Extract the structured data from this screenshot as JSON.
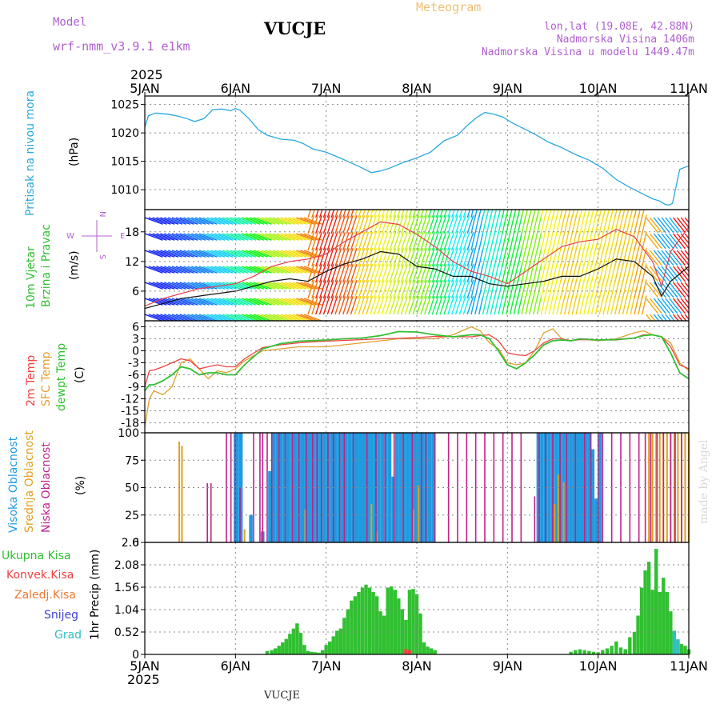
{
  "header": {
    "model_label": "Model",
    "model_name": "wrf-nmm_v3.9.1  e1km",
    "station": "VUCJE",
    "chart_title": "Meteogram",
    "lonlat": "lon,lat (19.08E, 42.88N)",
    "altitude": "Nadmorska Visina 1406m",
    "model_altitude": "Nadmorska Visina u modelu 1449.47m",
    "credit": "made by Angel",
    "footer_station": "VUCJE"
  },
  "colors": {
    "pressure": "#29a8e0",
    "wind_speed": "#111111",
    "gust": "#e8404a",
    "temp_2m": "#f04040",
    "temp_sfc": "#e0a030",
    "dewpoint": "#30c030",
    "cloud_high": "#1e9be0",
    "cloud_mid": "#e0a020",
    "cloud_low": "#c0208a",
    "precip_total": "#30c030",
    "precip_conv": "#f04040",
    "precip_frozen": "#f07830",
    "snow": "#4040d0",
    "hail": "#30c0c0"
  },
  "axes": {
    "year": "2025",
    "dates": [
      "5JAN",
      "6JAN",
      "7JAN",
      "8JAN",
      "9JAN",
      "10JAN",
      "11JAN"
    ]
  },
  "chart_data": [
    {
      "type": "line",
      "ylabel_main": "Pritisak na nivou mora",
      "unit": "(hPa)",
      "yticks": [
        "1010",
        "1015",
        "1020",
        "1025"
      ],
      "ylim": [
        1006.5,
        1026.5
      ],
      "x_days": [
        0,
        0.04,
        0.12,
        0.25,
        0.35,
        0.45,
        0.55,
        0.65,
        0.75,
        0.85,
        0.95,
        1.0,
        1.05,
        1.15,
        1.25,
        1.35,
        1.5,
        1.65,
        1.75,
        1.85,
        2.0,
        2.15,
        2.35,
        2.5,
        2.6,
        2.7,
        2.85,
        3.0,
        3.15,
        3.3,
        3.45,
        3.55,
        3.65,
        3.75,
        3.85,
        3.95,
        4.05,
        4.15,
        4.3,
        4.45,
        4.6,
        4.75,
        4.9,
        5.05,
        5.2,
        5.35,
        5.5,
        5.6,
        5.68,
        5.74,
        5.78,
        5.82,
        5.9,
        6.0
      ],
      "series": [
        {
          "name": "Pritisak na nivou mora",
          "values": [
            1021,
            1023,
            1023.5,
            1023.3,
            1023,
            1022.6,
            1022.0,
            1022.5,
            1024.1,
            1024.2,
            1023.9,
            1024.3,
            1024.0,
            1022.5,
            1020.6,
            1019.6,
            1018.9,
            1018.7,
            1018.1,
            1017.2,
            1016.6,
            1015.6,
            1014.2,
            1013.0,
            1013.3,
            1013.8,
            1014.8,
            1015.6,
            1016.6,
            1018.6,
            1019.6,
            1021.2,
            1022.6,
            1023.6,
            1023.3,
            1022.8,
            1021.8,
            1021.0,
            1019.8,
            1018.4,
            1017.4,
            1016.2,
            1015.2,
            1013.8,
            1011.8,
            1010.4,
            1009.2,
            1008.4,
            1008.0,
            1007.4,
            1007.3,
            1007.6,
            1013.6,
            1014.2
          ]
        }
      ]
    },
    {
      "type": "line",
      "ylabel_main": "10m Vjetar",
      "ylabel_sub": "Brzina i Pravac",
      "unit": "(m/s)",
      "compass": {
        "north": "N",
        "south": "S",
        "east": "E",
        "west": "W"
      },
      "yticks": [
        "6",
        "12",
        "18"
      ],
      "ylim": [
        0,
        22.5
      ],
      "x_days": [
        0,
        0.2,
        0.4,
        0.6,
        0.8,
        1.0,
        1.2,
        1.4,
        1.6,
        1.8,
        2.0,
        2.2,
        2.4,
        2.6,
        2.8,
        3.0,
        3.2,
        3.4,
        3.6,
        3.8,
        4.0,
        4.2,
        4.4,
        4.6,
        4.8,
        5.0,
        5.2,
        5.4,
        5.6,
        5.7,
        5.8,
        6.0
      ],
      "series": [
        {
          "name": "wind speed",
          "values": [
            2.5,
            3.5,
            4.5,
            5.0,
            5.5,
            6.0,
            7.0,
            8.0,
            8.5,
            8.0,
            10.0,
            11.5,
            12.5,
            14.0,
            13.5,
            11.0,
            10.5,
            9.0,
            9.0,
            7.5,
            7.0,
            7.5,
            8.0,
            9.0,
            9.0,
            10.5,
            12.5,
            12.0,
            9.0,
            5.0,
            8.0,
            11.0
          ]
        },
        {
          "name": "gust",
          "values": [
            3.0,
            4.5,
            5.5,
            6.5,
            7.0,
            7.5,
            9.0,
            11.0,
            12.0,
            12.5,
            13.5,
            16.0,
            18.0,
            20.0,
            19.5,
            17.5,
            15.0,
            12.0,
            10.0,
            9.0,
            7.5,
            10.0,
            12.5,
            15.0,
            16.0,
            16.5,
            18.5,
            17.0,
            12.0,
            7.0,
            14.0,
            19.0
          ]
        }
      ],
      "barb_hue_range": [
        "blue",
        "cyan",
        "green",
        "yellow",
        "red",
        "yellow",
        "green",
        "cyan",
        "red"
      ]
    },
    {
      "type": "line",
      "ylabel_t2m": "2m Temp",
      "ylabel_sfc": "SFC Temp",
      "ylabel_dew": "dewpt Temp",
      "unit": "(C)",
      "yticks": [
        "6",
        "3",
        "0",
        "-3",
        "-6",
        "-9",
        "-12",
        "-15",
        "-18"
      ],
      "ylim": [
        -20.5,
        7.5
      ],
      "x_days": [
        0,
        0.05,
        0.1,
        0.2,
        0.3,
        0.4,
        0.5,
        0.6,
        0.7,
        0.8,
        0.9,
        1.0,
        1.1,
        1.3,
        1.5,
        1.7,
        1.9,
        2.0,
        2.2,
        2.4,
        2.6,
        2.8,
        3.0,
        3.2,
        3.4,
        3.6,
        3.7,
        3.8,
        3.9,
        4.0,
        4.1,
        4.2,
        4.3,
        4.4,
        4.5,
        4.6,
        4.7,
        4.8,
        5.0,
        5.2,
        5.4,
        5.5,
        5.6,
        5.7,
        5.8,
        5.9,
        6.0
      ],
      "series": [
        {
          "name": "2m Temp",
          "values": [
            -9,
            -5,
            -4.8,
            -4.0,
            -3.0,
            -2.0,
            -2.5,
            -4.5,
            -4.0,
            -3.5,
            -4.0,
            -4.0,
            -2.0,
            0.8,
            1.5,
            2.0,
            2.3,
            2.4,
            2.6,
            2.8,
            3.0,
            3.1,
            3.3,
            3.6,
            3.5,
            3.5,
            3.8,
            4.0,
            2.5,
            -0.5,
            -1.0,
            -1.2,
            0.0,
            2.0,
            3.0,
            3.0,
            2.5,
            2.8,
            2.7,
            2.7,
            3.2,
            4.0,
            4.0,
            3.5,
            1.0,
            -3.5,
            -4.5
          ]
        },
        {
          "name": "SFC Temp",
          "values": [
            -19,
            -12,
            -10,
            -11,
            -9,
            -3.0,
            -2.0,
            -4.5,
            -7.0,
            -5.0,
            -5.5,
            -4.5,
            -2.5,
            0.0,
            0.5,
            1.0,
            1.0,
            1.0,
            1.5,
            2.0,
            2.5,
            3.0,
            3.0,
            3.0,
            4.0,
            6.0,
            5.0,
            2.0,
            0.5,
            -3.0,
            -3.5,
            -3.0,
            0.0,
            4.5,
            5.5,
            3.0,
            2.5,
            3.0,
            2.5,
            3.0,
            4.5,
            5.0,
            4.0,
            3.5,
            2.0,
            -3.0,
            -5.0
          ]
        },
        {
          "name": "dewpt Temp",
          "values": [
            -10,
            -8.5,
            -8.5,
            -7.5,
            -6.0,
            -4.0,
            -4.5,
            -6.0,
            -5.5,
            -5.5,
            -6.0,
            -6.0,
            -3.5,
            0.5,
            1.8,
            2.4,
            2.6,
            2.7,
            3.0,
            3.2,
            3.8,
            4.8,
            4.7,
            4.0,
            3.5,
            4.0,
            4.0,
            3.0,
            0.0,
            -3.5,
            -4.5,
            -3.0,
            -1.0,
            1.5,
            2.5,
            2.7,
            2.5,
            3.0,
            2.7,
            2.8,
            3.2,
            3.8,
            4.0,
            3.5,
            -0.5,
            -5.5,
            -7.0
          ]
        }
      ]
    },
    {
      "type": "bar",
      "ylabel_high": "Visoka Oblacnost",
      "ylabel_mid": "Srednja Oblacnost",
      "ylabel_low": "Niska Oblacnost",
      "unit": "(%)",
      "yticks": [
        "0",
        "25",
        "50",
        "75",
        "100"
      ],
      "ylim": [
        0,
        100
      ],
      "series": [
        {
          "name": "Visoka Oblacnost",
          "x_days": [
            1.0,
            1.02,
            1.06,
            1.17,
            1.3,
            1.38,
            1.42,
            1.46,
            1.5,
            1.54,
            1.58,
            1.62,
            1.66,
            1.7,
            1.74,
            1.78,
            1.82,
            1.86,
            1.9,
            1.94,
            1.98,
            2.02,
            2.06,
            2.1,
            2.14,
            2.18,
            2.22,
            2.26,
            2.3,
            2.34,
            2.38,
            2.42,
            2.46,
            2.5,
            2.54,
            2.58,
            2.62,
            2.66,
            2.7,
            2.74,
            2.78,
            2.82,
            2.86,
            2.9,
            2.94,
            2.98,
            3.02,
            3.06,
            3.1,
            3.14,
            3.18,
            4.34,
            4.38,
            4.42,
            4.46,
            4.5,
            4.54,
            4.58,
            4.62,
            4.66,
            4.7,
            4.74,
            4.78,
            4.82,
            4.86,
            4.9,
            4.94,
            4.98,
            5.02
          ],
          "values": [
            100,
            100,
            100,
            25,
            10,
            65,
            100,
            100,
            100,
            100,
            100,
            100,
            100,
            100,
            100,
            100,
            100,
            100,
            100,
            100,
            100,
            100,
            100,
            100,
            100,
            100,
            100,
            100,
            100,
            100,
            100,
            100,
            100,
            100,
            100,
            100,
            100,
            100,
            100,
            60,
            100,
            100,
            100,
            100,
            100,
            100,
            100,
            100,
            100,
            100,
            100,
            100,
            100,
            100,
            100,
            100,
            100,
            100,
            100,
            100,
            100,
            100,
            100,
            100,
            100,
            100,
            85,
            40,
            100
          ]
        },
        {
          "name": "Srednja Oblacnost",
          "x_days": [
            0.38,
            0.41,
            1.1,
            1.77,
            2.5,
            2.56,
            2.96,
            3.02,
            4.52,
            4.56,
            4.62,
            5.56,
            5.6,
            5.64,
            5.68,
            5.72,
            5.76,
            5.8,
            5.84,
            5.88,
            5.92,
            5.96,
            6.0
          ],
          "values": [
            92,
            88,
            12,
            30,
            35,
            10,
            30,
            52,
            35,
            62,
            55,
            100,
            100,
            100,
            100,
            100,
            100,
            100,
            100,
            100,
            100,
            100,
            100
          ]
        },
        {
          "name": "Niska Oblacnost",
          "x_days": [
            0.69,
            0.73,
            0.75,
            0.9,
            0.95,
            1.0,
            1.05,
            1.2,
            1.27,
            1.3,
            1.35,
            1.4,
            1.48,
            1.55,
            1.63,
            1.7,
            1.78,
            1.85,
            1.9,
            1.95,
            2.02,
            2.08,
            2.15,
            2.2,
            2.3,
            2.45,
            2.55,
            2.65,
            2.75,
            2.85,
            2.95,
            3.05,
            3.1,
            3.2,
            3.35,
            3.45,
            3.55,
            3.65,
            3.75,
            3.85,
            3.95,
            4.05,
            4.15,
            4.3,
            4.35,
            4.42,
            4.5,
            4.58,
            4.65,
            4.75,
            4.85,
            4.92,
            5.0,
            5.05,
            5.15,
            5.25,
            5.35,
            5.45,
            5.52,
            5.58,
            5.65,
            5.72,
            5.8,
            5.85,
            5.92
          ],
          "values": [
            54,
            54,
            0,
            100,
            100,
            100,
            50,
            100,
            100,
            100,
            100,
            100,
            100,
            100,
            100,
            100,
            100,
            100,
            100,
            100,
            100,
            100,
            100,
            100,
            100,
            100,
            100,
            100,
            100,
            100,
            100,
            100,
            100,
            100,
            100,
            100,
            100,
            100,
            100,
            100,
            100,
            100,
            100,
            42,
            100,
            100,
            100,
            100,
            100,
            100,
            100,
            100,
            100,
            100,
            100,
            100,
            100,
            100,
            100,
            100,
            100,
            100,
            100,
            100,
            100
          ]
        }
      ]
    },
    {
      "type": "bar",
      "legend": [
        "Ukupna Kisa",
        "Konvek.Kisa",
        "Zaledj.Kisa",
        "Snijeg",
        "Grad"
      ],
      "unit": "1hr Precip (mm)",
      "yticks": [
        "0",
        "0.52",
        "1.04",
        "1.56",
        "2.08",
        "2.6"
      ],
      "ylim": [
        0,
        2.6
      ],
      "series": [
        {
          "name": "Ukupna Kisa",
          "x_days": [
            1.35,
            1.4,
            1.44,
            1.48,
            1.52,
            1.56,
            1.6,
            1.64,
            1.68,
            1.72,
            1.76,
            1.8,
            1.84,
            1.88,
            1.92,
            1.96,
            2.0,
            2.04,
            2.08,
            2.12,
            2.16,
            2.2,
            2.24,
            2.28,
            2.32,
            2.36,
            2.4,
            2.44,
            2.48,
            2.52,
            2.56,
            2.6,
            2.64,
            2.68,
            2.72,
            2.76,
            2.8,
            2.84,
            2.88,
            2.92,
            2.96,
            3.0,
            3.04,
            3.08,
            3.12,
            3.16,
            3.2,
            4.7,
            4.75,
            4.8,
            4.85,
            4.9,
            4.95,
            5.0,
            5.05,
            5.1,
            5.15,
            5.2,
            5.25,
            5.3,
            5.35,
            5.4,
            5.44,
            5.48,
            5.52,
            5.56,
            5.6,
            5.64,
            5.68,
            5.72,
            5.76,
            5.8,
            5.84,
            5.88,
            5.92,
            5.96,
            6.0
          ],
          "values": [
            0.08,
            0.1,
            0.14,
            0.2,
            0.28,
            0.36,
            0.48,
            0.6,
            0.72,
            0.5,
            0.22,
            0.08,
            0.06,
            0.05,
            0.04,
            0.1,
            0.22,
            0.3,
            0.42,
            0.55,
            0.6,
            0.85,
            1.05,
            1.25,
            1.35,
            1.45,
            1.55,
            1.62,
            1.55,
            1.45,
            1.35,
            1.0,
            0.9,
            1.55,
            1.58,
            1.5,
            1.3,
            1.05,
            0.8,
            1.5,
            1.52,
            1.4,
            0.95,
            0.28,
            0.18,
            0.14,
            0.1,
            0.06,
            0.1,
            0.12,
            0.1,
            0.08,
            0.06,
            0.05,
            0.1,
            0.14,
            0.2,
            0.3,
            0.16,
            0.12,
            0.4,
            0.52,
            0.9,
            1.55,
            1.95,
            2.15,
            1.5,
            2.45,
            1.45,
            1.78,
            1.45,
            1.0,
            0.52,
            0.32,
            0.24,
            0.2,
            0.12
          ]
        },
        {
          "name": "Konvek.Kisa",
          "x_days": [
            2.88,
            2.92
          ],
          "values": [
            0.12,
            0.1
          ]
        },
        {
          "name": "Grad",
          "x_days": [
            5.84,
            5.88
          ],
          "values": [
            0.55,
            0.35
          ]
        }
      ]
    }
  ]
}
